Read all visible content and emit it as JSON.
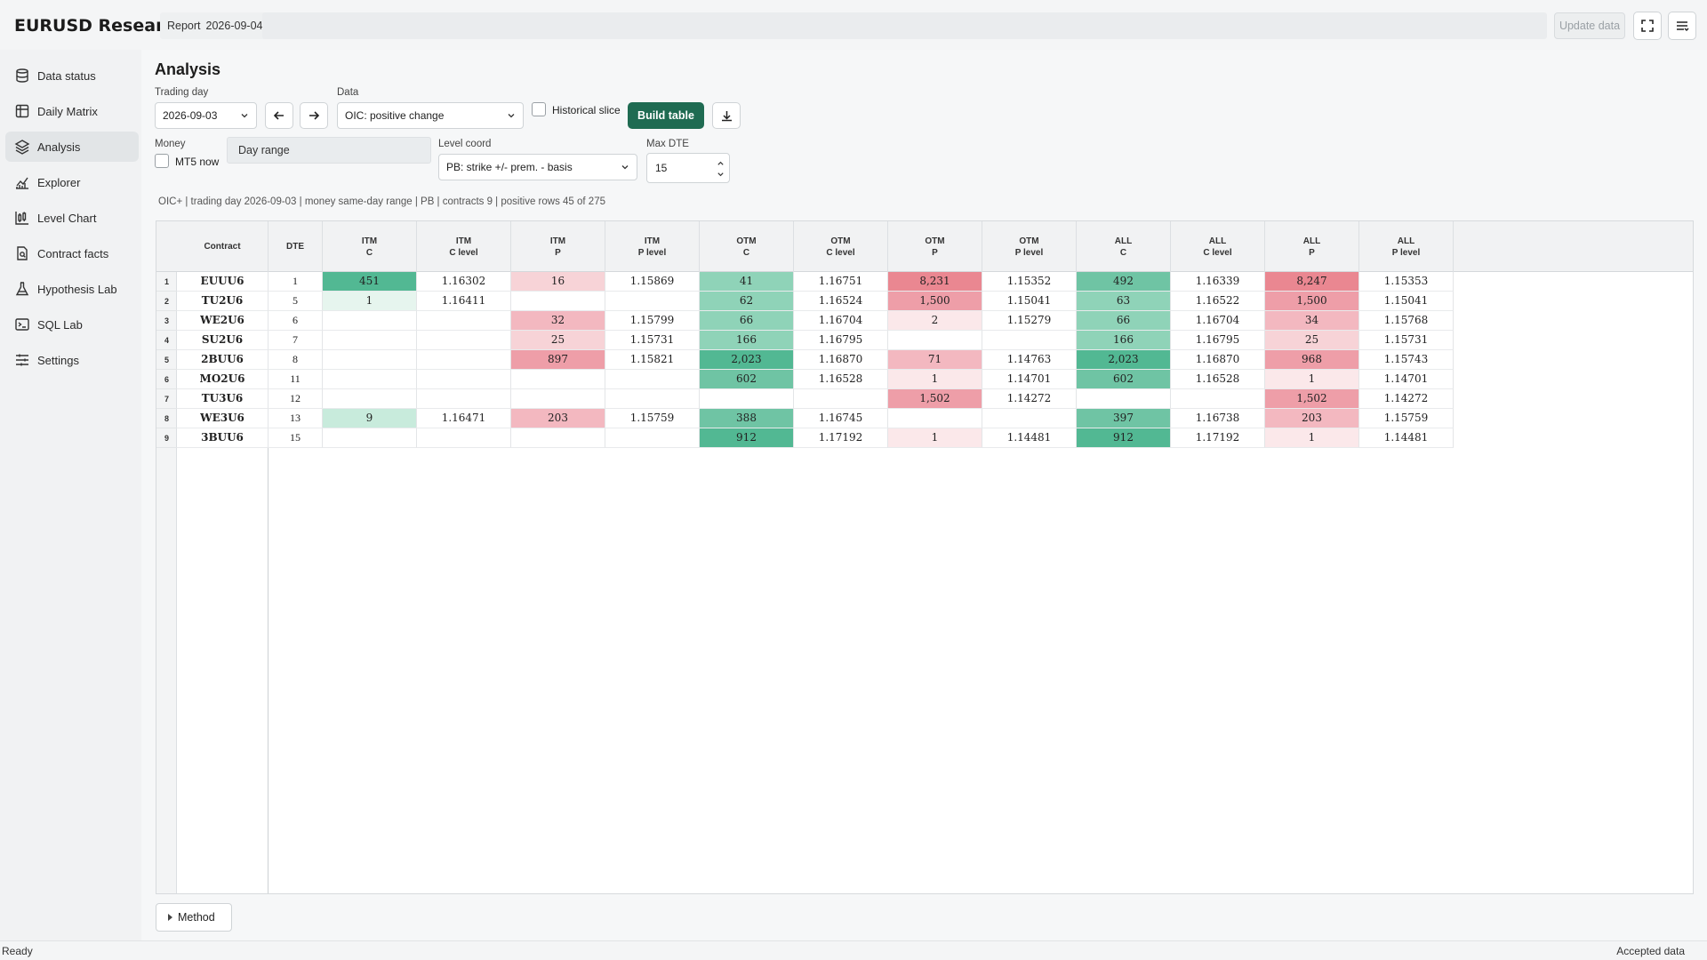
{
  "app": {
    "title": "EURUSD Research",
    "report_label": "Report",
    "report_date": "2026-09-04",
    "update_label": "Update data"
  },
  "sidebar": {
    "items": [
      {
        "label": "Data status",
        "icon": "database-icon"
      },
      {
        "label": "Daily Matrix",
        "icon": "grid-icon"
      },
      {
        "label": "Analysis",
        "icon": "layers-icon",
        "active": true
      },
      {
        "label": "Explorer",
        "icon": "line-chart-icon"
      },
      {
        "label": "Level Chart",
        "icon": "candle-chart-icon"
      },
      {
        "label": "Contract facts",
        "icon": "document-icon"
      },
      {
        "label": "Hypothesis Lab",
        "icon": "flask-icon"
      },
      {
        "label": "SQL Lab",
        "icon": "terminal-icon"
      },
      {
        "label": "Settings",
        "icon": "sliders-icon"
      }
    ]
  },
  "analysis": {
    "title": "Analysis",
    "trading_day_label": "Trading day",
    "trading_day": "2026-09-03",
    "data_label": "Data",
    "data_value": "OIC: positive change",
    "historical_slice_label": "Historical slice",
    "build_label": "Build table",
    "money_label": "Money",
    "mt5_label": "MT5 now",
    "day_range_label": "Day range",
    "level_coord_label": "Level coord",
    "level_coord_value": "PB: strike +/- prem. - basis",
    "max_dte_label": "Max DTE",
    "max_dte_value": "15",
    "summary": "OIC+ | trading day 2026-09-03 | money same-day range | PB | contracts 9 | positive rows 45 of 275",
    "method_label": "Method"
  },
  "colors": {
    "accent": "#1f6b52",
    "green_scale": [
      "#e6f5ee",
      "#c8ebdc",
      "#a8dcc6",
      "#8fd3b8",
      "#6fc4a4",
      "#52b893"
    ],
    "red_scale": [
      "#fbe8ea",
      "#f7d3d7",
      "#f3b8c0",
      "#ee9ea8",
      "#ea8791"
    ]
  },
  "table": {
    "columns": [
      {
        "key": "contract",
        "l1": "Contract",
        "l2": ""
      },
      {
        "key": "dte",
        "l1": "DTE",
        "l2": ""
      },
      {
        "key": "itm_c",
        "l1": "ITM",
        "l2": "C"
      },
      {
        "key": "itm_cl",
        "l1": "ITM",
        "l2": "C level"
      },
      {
        "key": "itm_p",
        "l1": "ITM",
        "l2": "P"
      },
      {
        "key": "itm_pl",
        "l1": "ITM",
        "l2": "P level"
      },
      {
        "key": "otm_c",
        "l1": "OTM",
        "l2": "C"
      },
      {
        "key": "otm_cl",
        "l1": "OTM",
        "l2": "C level"
      },
      {
        "key": "otm_p",
        "l1": "OTM",
        "l2": "P"
      },
      {
        "key": "otm_pl",
        "l1": "OTM",
        "l2": "P level"
      },
      {
        "key": "all_c",
        "l1": "ALL",
        "l2": "C"
      },
      {
        "key": "all_cl",
        "l1": "ALL",
        "l2": "C level"
      },
      {
        "key": "all_p",
        "l1": "ALL",
        "l2": "P"
      },
      {
        "key": "all_pl",
        "l1": "ALL",
        "l2": "P level"
      }
    ],
    "rows": [
      {
        "n": "1",
        "cells": [
          "EUUU6",
          "1",
          "451",
          "1.16302",
          "16",
          "1.15869",
          "41",
          "1.16751",
          "8,231",
          "1.15352",
          "492",
          "1.16339",
          "8,247",
          "1.15353"
        ],
        "heat": [
          null,
          null,
          "g5",
          null,
          "r1",
          null,
          "g3",
          null,
          "r4",
          null,
          "g4",
          null,
          "r4",
          null
        ]
      },
      {
        "n": "2",
        "cells": [
          "TU2U6",
          "5",
          "1",
          "1.16411",
          "",
          "",
          "62",
          "1.16524",
          "1,500",
          "1.15041",
          "63",
          "1.16522",
          "1,500",
          "1.15041"
        ],
        "heat": [
          null,
          null,
          "g0",
          null,
          null,
          null,
          "g3",
          null,
          "r3",
          null,
          "g3",
          null,
          "r3",
          null
        ]
      },
      {
        "n": "3",
        "cells": [
          "WE2U6",
          "6",
          "",
          "",
          "32",
          "1.15799",
          "66",
          "1.16704",
          "2",
          "1.15279",
          "66",
          "1.16704",
          "34",
          "1.15768"
        ],
        "heat": [
          null,
          null,
          null,
          null,
          "r2",
          null,
          "g3",
          null,
          "r0",
          null,
          "g3",
          null,
          "r2",
          null
        ]
      },
      {
        "n": "4",
        "cells": [
          "SU2U6",
          "7",
          "",
          "",
          "25",
          "1.15731",
          "166",
          "1.16795",
          "",
          "",
          "166",
          "1.16795",
          "25",
          "1.15731"
        ],
        "heat": [
          null,
          null,
          null,
          null,
          "r1",
          null,
          "g3",
          null,
          null,
          null,
          "g3",
          null,
          "r1",
          null
        ]
      },
      {
        "n": "5",
        "cells": [
          "2BUU6",
          "8",
          "",
          "",
          "897",
          "1.15821",
          "2,023",
          "1.16870",
          "71",
          "1.14763",
          "2,023",
          "1.16870",
          "968",
          "1.15743"
        ],
        "heat": [
          null,
          null,
          null,
          null,
          "r3",
          null,
          "g5",
          null,
          "r2",
          null,
          "g5",
          null,
          "r3",
          null
        ]
      },
      {
        "n": "6",
        "cells": [
          "MO2U6",
          "11",
          "",
          "",
          "",
          "",
          "602",
          "1.16528",
          "1",
          "1.14701",
          "602",
          "1.16528",
          "1",
          "1.14701"
        ],
        "heat": [
          null,
          null,
          null,
          null,
          null,
          null,
          "g4",
          null,
          "r0",
          null,
          "g4",
          null,
          "r0",
          null
        ]
      },
      {
        "n": "7",
        "cells": [
          "TU3U6",
          "12",
          "",
          "",
          "",
          "",
          "",
          "",
          "1,502",
          "1.14272",
          "",
          "",
          "1,502",
          "1.14272"
        ],
        "heat": [
          null,
          null,
          null,
          null,
          null,
          null,
          null,
          null,
          "r3",
          null,
          null,
          null,
          "r3",
          null
        ]
      },
      {
        "n": "8",
        "cells": [
          "WE3U6",
          "13",
          "9",
          "1.16471",
          "203",
          "1.15759",
          "388",
          "1.16745",
          "",
          "",
          "397",
          "1.16738",
          "203",
          "1.15759"
        ],
        "heat": [
          null,
          null,
          "g1",
          null,
          "r2",
          null,
          "g4",
          null,
          null,
          null,
          "g4",
          null,
          "r2",
          null
        ]
      },
      {
        "n": "9",
        "cells": [
          "3BUU6",
          "15",
          "",
          "",
          "",
          "",
          "912",
          "1.17192",
          "1",
          "1.14481",
          "912",
          "1.17192",
          "1",
          "1.14481"
        ],
        "heat": [
          null,
          null,
          null,
          null,
          null,
          null,
          "g5",
          null,
          "r0",
          null,
          "g5",
          null,
          "r0",
          null
        ]
      }
    ]
  },
  "status": {
    "left": "Ready",
    "right": "Accepted data"
  }
}
